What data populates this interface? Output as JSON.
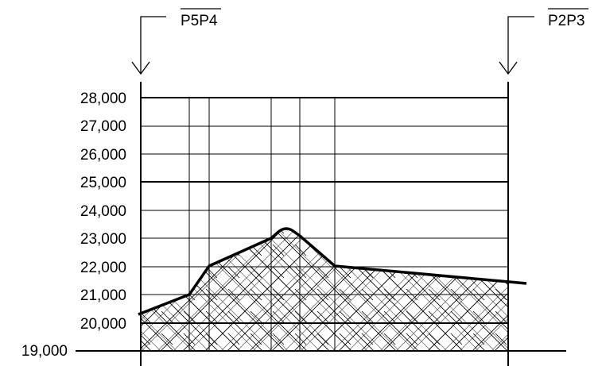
{
  "sections": [
    {
      "label": "P5P4"
    },
    {
      "label": "P2P3"
    }
  ],
  "elevation_axis": {
    "tick_labels": [
      "19,000",
      "20,000",
      "21,000",
      "22,000",
      "23,000",
      "24,000",
      "25,000",
      "26,000",
      "27,000",
      "28,000"
    ]
  },
  "colors": {
    "line": "#000000",
    "background": "#ffffff"
  },
  "pattern": "diagonal-crosshatch"
}
